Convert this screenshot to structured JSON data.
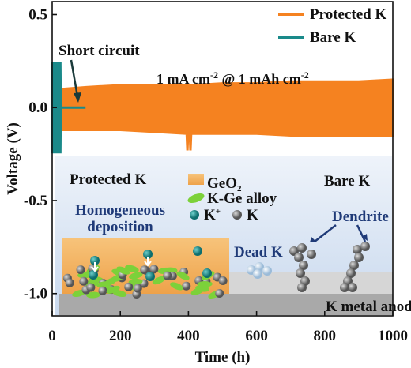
{
  "chart_data": {
    "type": "band",
    "xlabel": "Time (h)",
    "ylabel": "Voltage (V)",
    "xlim": [
      0,
      1000
    ],
    "ylim": [
      -1.12,
      0.57
    ],
    "xticks": [
      0,
      200,
      400,
      600,
      800,
      1000
    ],
    "yticks": [
      0.5,
      {
        "value": 0,
        "label": "0.0"
      },
      -0.5,
      {
        "value": -1,
        "label": "-1.0"
      }
    ],
    "legend": "upper right",
    "series": [
      {
        "name": "Protected K",
        "color": "#f58220",
        "x": [
          28,
          100,
          200,
          300,
          395,
          397,
          399,
          404,
          406,
          408,
          410,
          500,
          600,
          700,
          800,
          900,
          1000
        ],
        "values": [
          0.1,
          0.11,
          0.12,
          0.12,
          0.12,
          0.12,
          0.12,
          0.12,
          0.12,
          0.12,
          0.12,
          0.13,
          0.13,
          0.14,
          0.14,
          0.14,
          0.15
        ],
        "low": [
          -0.12,
          -0.12,
          -0.12,
          -0.13,
          -0.14,
          -0.23,
          -0.14,
          -0.14,
          -0.23,
          -0.14,
          -0.14,
          -0.14,
          -0.14,
          -0.15,
          -0.15,
          -0.15,
          -0.15
        ]
      },
      {
        "name": "Bare K",
        "color": "#1a8a8a",
        "x": [
          0,
          24,
          25,
          98
        ],
        "values": [
          0.24,
          0.24,
          0,
          0
        ],
        "low": [
          -0.24,
          -0.24,
          0,
          0
        ]
      }
    ],
    "annotations": {
      "short_circuit": "Short circuit",
      "rate": [
        "1 mA cm",
        "-2",
        " @ 1 mAh cm",
        "-2"
      ]
    }
  },
  "inset": {
    "protected": "Protected K",
    "geo2": [
      "GeO",
      "2"
    ],
    "alloy": "K-Ge alloy",
    "kplus": [
      "K",
      "+"
    ],
    "k": "K",
    "homogeneous": [
      "Homogeneous",
      "deposition"
    ],
    "bare": "Bare K",
    "dendrite": "Dendrite",
    "dead": "Dead K",
    "anode": "K metal anode"
  }
}
